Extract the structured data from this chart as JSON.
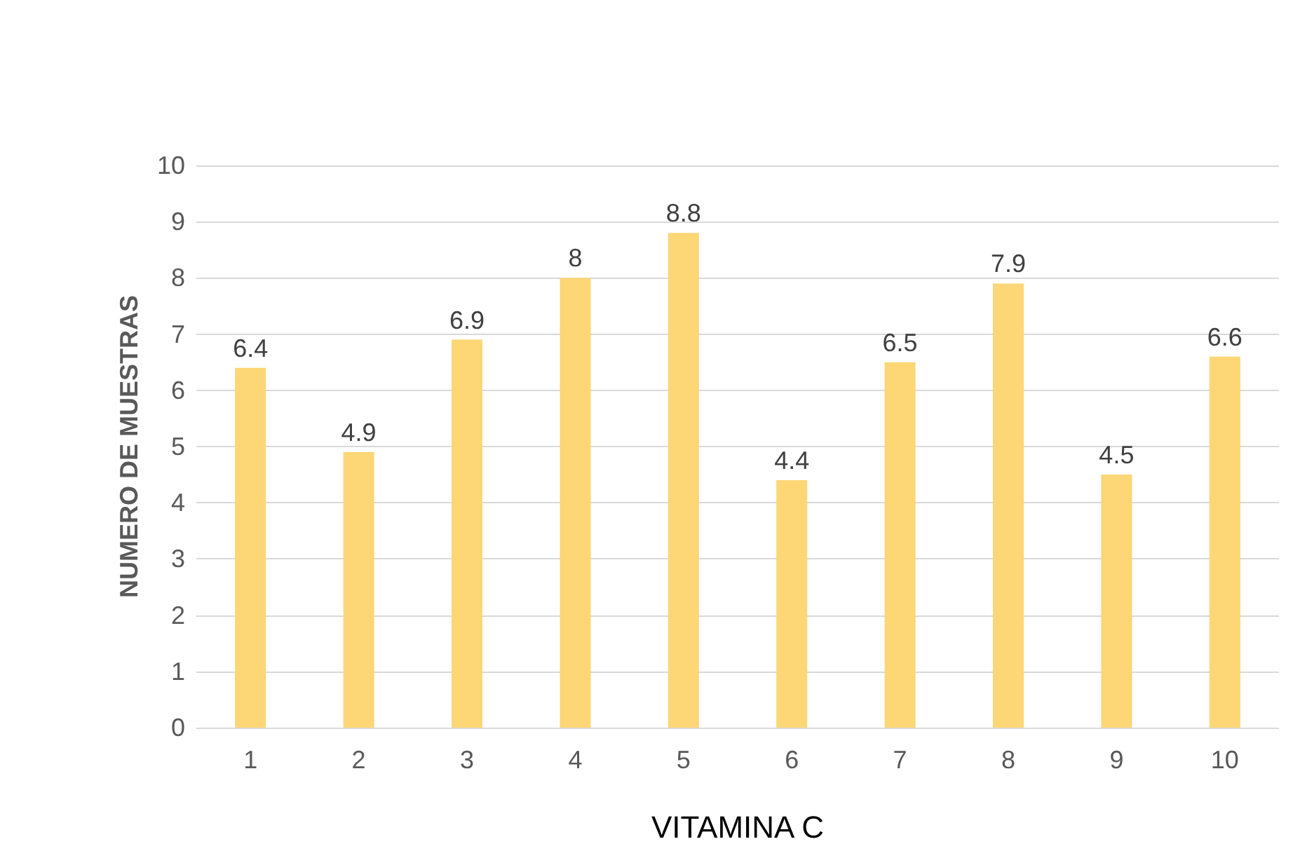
{
  "chart_data": {
    "type": "bar",
    "xlabel": "VITAMINA C",
    "ylabel": "NUMERO DE MUESTRAS",
    "categories": [
      "1",
      "2",
      "3",
      "4",
      "5",
      "6",
      "7",
      "8",
      "9",
      "10"
    ],
    "values": [
      6.4,
      4.9,
      6.9,
      8,
      8.8,
      4.4,
      6.5,
      7.9,
      4.5,
      6.6
    ],
    "color": "#fdd675",
    "ylim": [
      0,
      10
    ],
    "yticks": [
      0,
      1,
      2,
      3,
      4,
      5,
      6,
      7,
      8,
      9,
      10
    ],
    "grid": "y",
    "data_labels": true
  }
}
